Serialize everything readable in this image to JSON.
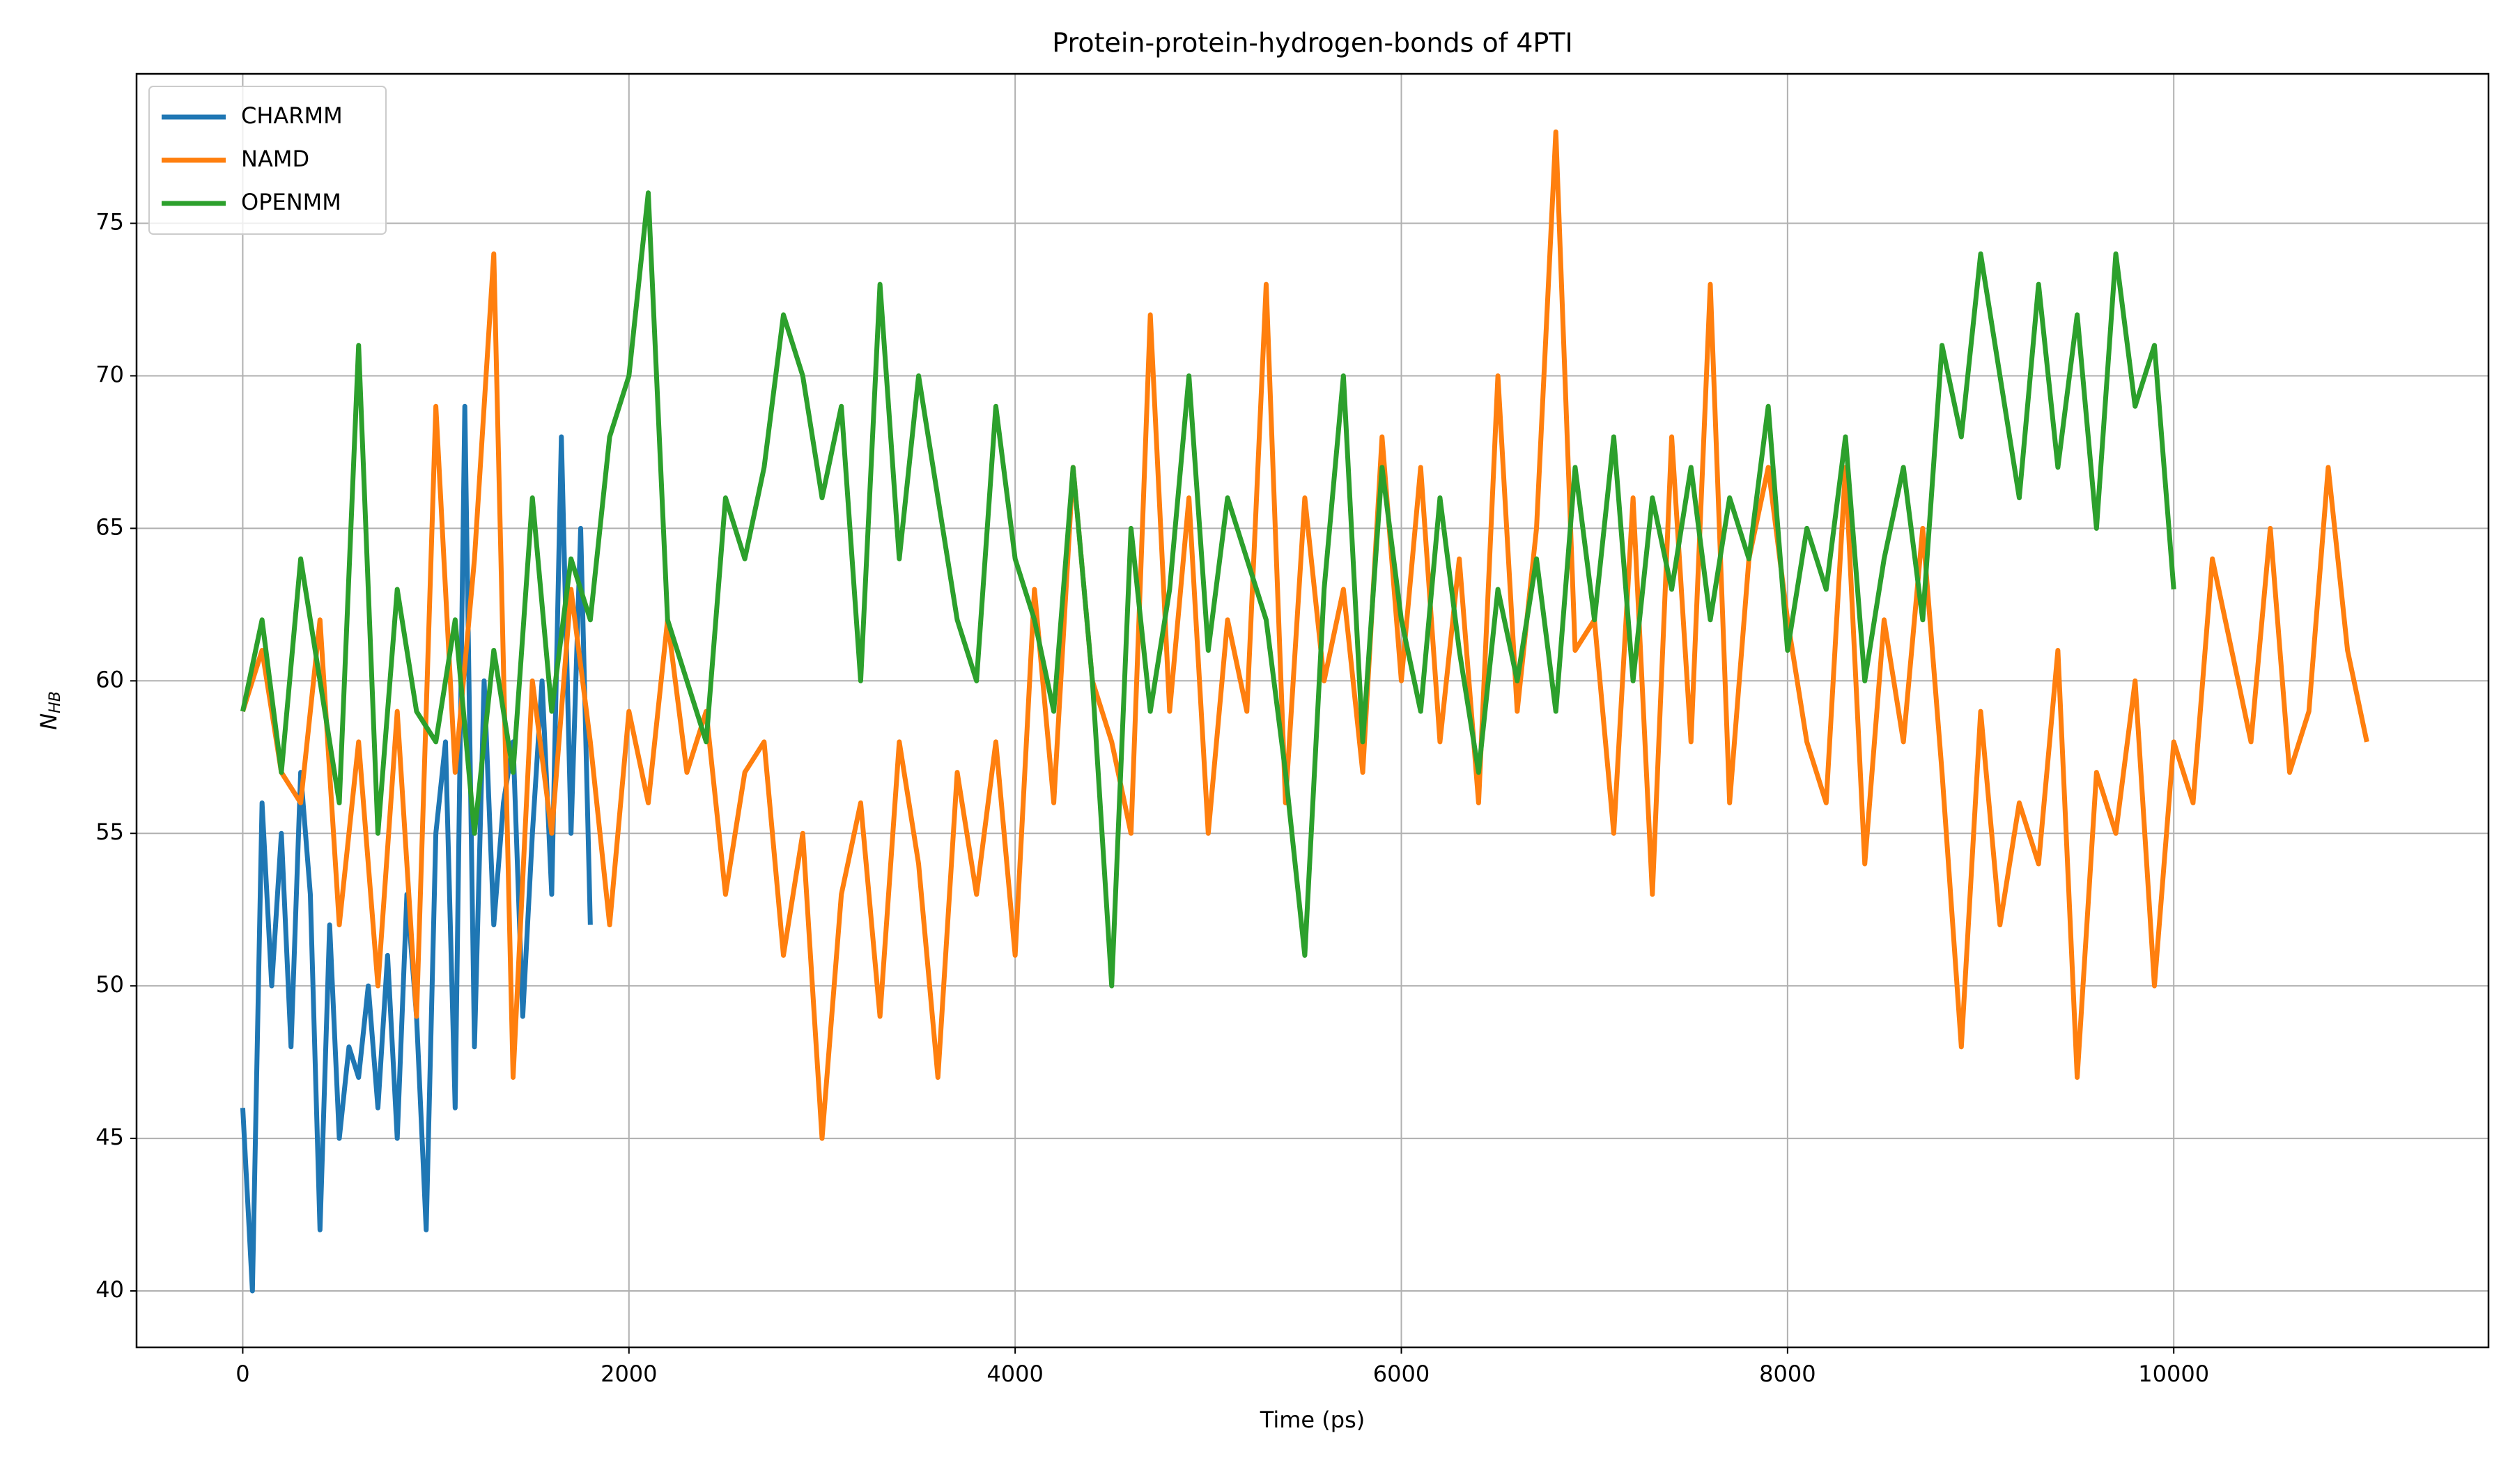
{
  "chart_data": {
    "type": "line",
    "title": "Protein-protein-hydrogen-bonds of 4PTI",
    "xlabel": "Time (ps)",
    "ylabel": "N",
    "ylabel_sub": "HB",
    "xlim": [
      -550,
      11630
    ],
    "ylim": [
      38.15,
      79.9
    ],
    "xticks": [
      0,
      2000,
      4000,
      6000,
      8000,
      10000
    ],
    "yticks": [
      40,
      45,
      50,
      55,
      60,
      65,
      70,
      75
    ],
    "grid": true,
    "legend": "upper-left",
    "series": [
      {
        "name": "CHARMM",
        "color": "#1f77b4",
        "x": [
          0,
          50,
          100,
          150,
          200,
          250,
          300,
          350,
          400,
          450,
          500,
          550,
          600,
          650,
          700,
          750,
          800,
          850,
          900,
          950,
          1000,
          1050,
          1100,
          1150,
          1200,
          1250,
          1300,
          1350,
          1400,
          1450,
          1500,
          1550,
          1600,
          1650,
          1700,
          1750,
          1800
        ],
        "values": [
          46,
          40,
          56,
          50,
          55,
          48,
          57,
          53,
          42,
          52,
          45,
          48,
          47,
          50,
          46,
          51,
          45,
          53,
          49,
          42,
          55,
          58,
          46,
          69,
          48,
          60,
          52,
          56,
          58,
          49,
          55,
          60,
          53,
          68,
          55,
          65,
          52
        ]
      },
      {
        "name": "NAMD",
        "color": "#ff7f0e",
        "x": [
          0,
          100,
          200,
          300,
          400,
          500,
          600,
          700,
          800,
          900,
          1000,
          1100,
          1200,
          1300,
          1400,
          1500,
          1600,
          1700,
          1800,
          1900,
          2000,
          2100,
          2200,
          2300,
          2400,
          2500,
          2600,
          2700,
          2800,
          2900,
          3000,
          3100,
          3200,
          3300,
          3400,
          3500,
          3600,
          3700,
          3800,
          3900,
          4000,
          4100,
          4200,
          4300,
          4400,
          4500,
          4600,
          4700,
          4800,
          4900,
          5000,
          5100,
          5200,
          5300,
          5400,
          5500,
          5600,
          5700,
          5800,
          5900,
          6000,
          6100,
          6200,
          6300,
          6400,
          6500,
          6600,
          6700,
          6800,
          6900,
          7000,
          7100,
          7200,
          7300,
          7400,
          7500,
          7600,
          7700,
          7800,
          7900,
          8000,
          8100,
          8200,
          8300,
          8400,
          8500,
          8600,
          8700,
          8800,
          8900,
          9000,
          9100,
          9200,
          9300,
          9400,
          9500,
          9600,
          9700,
          9800,
          9900,
          10000,
          10100,
          10200,
          10300,
          10400,
          10500,
          10600,
          10700,
          10800,
          10900,
          11000
        ],
        "values": [
          59,
          61,
          57,
          56,
          62,
          52,
          58,
          50,
          59,
          49,
          69,
          57,
          64,
          74,
          47,
          60,
          55,
          63,
          58,
          52,
          59,
          56,
          62,
          57,
          59,
          53,
          57,
          58,
          51,
          55,
          45,
          53,
          56,
          49,
          58,
          54,
          47,
          57,
          53,
          58,
          51,
          63,
          56,
          67,
          60,
          58,
          55,
          72,
          59,
          66,
          55,
          62,
          59,
          73,
          56,
          66,
          60,
          63,
          57,
          68,
          60,
          67,
          58,
          64,
          56,
          70,
          59,
          65,
          78,
          61,
          62,
          55,
          66,
          53,
          68,
          58,
          73,
          56,
          64,
          67,
          62,
          58,
          56,
          67,
          54,
          62,
          58,
          65,
          57,
          48,
          59,
          52,
          56,
          54,
          61,
          47,
          57,
          55,
          60,
          50,
          58,
          56,
          64,
          61,
          58,
          65,
          57,
          59,
          67,
          61,
          58
        ]
      },
      {
        "name": "OPENMM",
        "color": "#2ca02c",
        "x": [
          0,
          100,
          200,
          300,
          400,
          500,
          600,
          700,
          800,
          900,
          1000,
          1100,
          1200,
          1300,
          1400,
          1500,
          1600,
          1700,
          1800,
          1900,
          2000,
          2100,
          2200,
          2300,
          2400,
          2500,
          2600,
          2700,
          2800,
          2900,
          3000,
          3100,
          3200,
          3300,
          3400,
          3500,
          3600,
          3700,
          3800,
          3900,
          4000,
          4100,
          4200,
          4300,
          4400,
          4500,
          4600,
          4700,
          4800,
          4900,
          5000,
          5100,
          5200,
          5300,
          5400,
          5500,
          5600,
          5700,
          5800,
          5900,
          6000,
          6100,
          6200,
          6300,
          6400,
          6500,
          6600,
          6700,
          6800,
          6900,
          7000,
          7100,
          7200,
          7300,
          7400,
          7500,
          7600,
          7700,
          7800,
          7900,
          8000,
          8100,
          8200,
          8300,
          8400,
          8500,
          8600,
          8700,
          8800,
          8900,
          9000,
          9100,
          9200,
          9300,
          9400,
          9500,
          9600,
          9700,
          9800,
          9900,
          10000
        ],
        "values": [
          59,
          62,
          57,
          64,
          60,
          56,
          71,
          55,
          63,
          59,
          58,
          62,
          55,
          61,
          57,
          66,
          59,
          64,
          62,
          68,
          70,
          76,
          62,
          60,
          58,
          66,
          64,
          67,
          72,
          70,
          66,
          69,
          60,
          73,
          64,
          70,
          66,
          62,
          60,
          69,
          64,
          62,
          59,
          67,
          60,
          50,
          65,
          59,
          63,
          70,
          61,
          66,
          64,
          62,
          57,
          51,
          63,
          70,
          58,
          67,
          62,
          59,
          66,
          61,
          57,
          63,
          60,
          64,
          59,
          67,
          62,
          68,
          60,
          66,
          63,
          67,
          62,
          66,
          64,
          69,
          61,
          65,
          63,
          68,
          60,
          64,
          67,
          62,
          71,
          68,
          74,
          70,
          66,
          73,
          67,
          72,
          65,
          74,
          69,
          71,
          63
        ]
      }
    ]
  }
}
